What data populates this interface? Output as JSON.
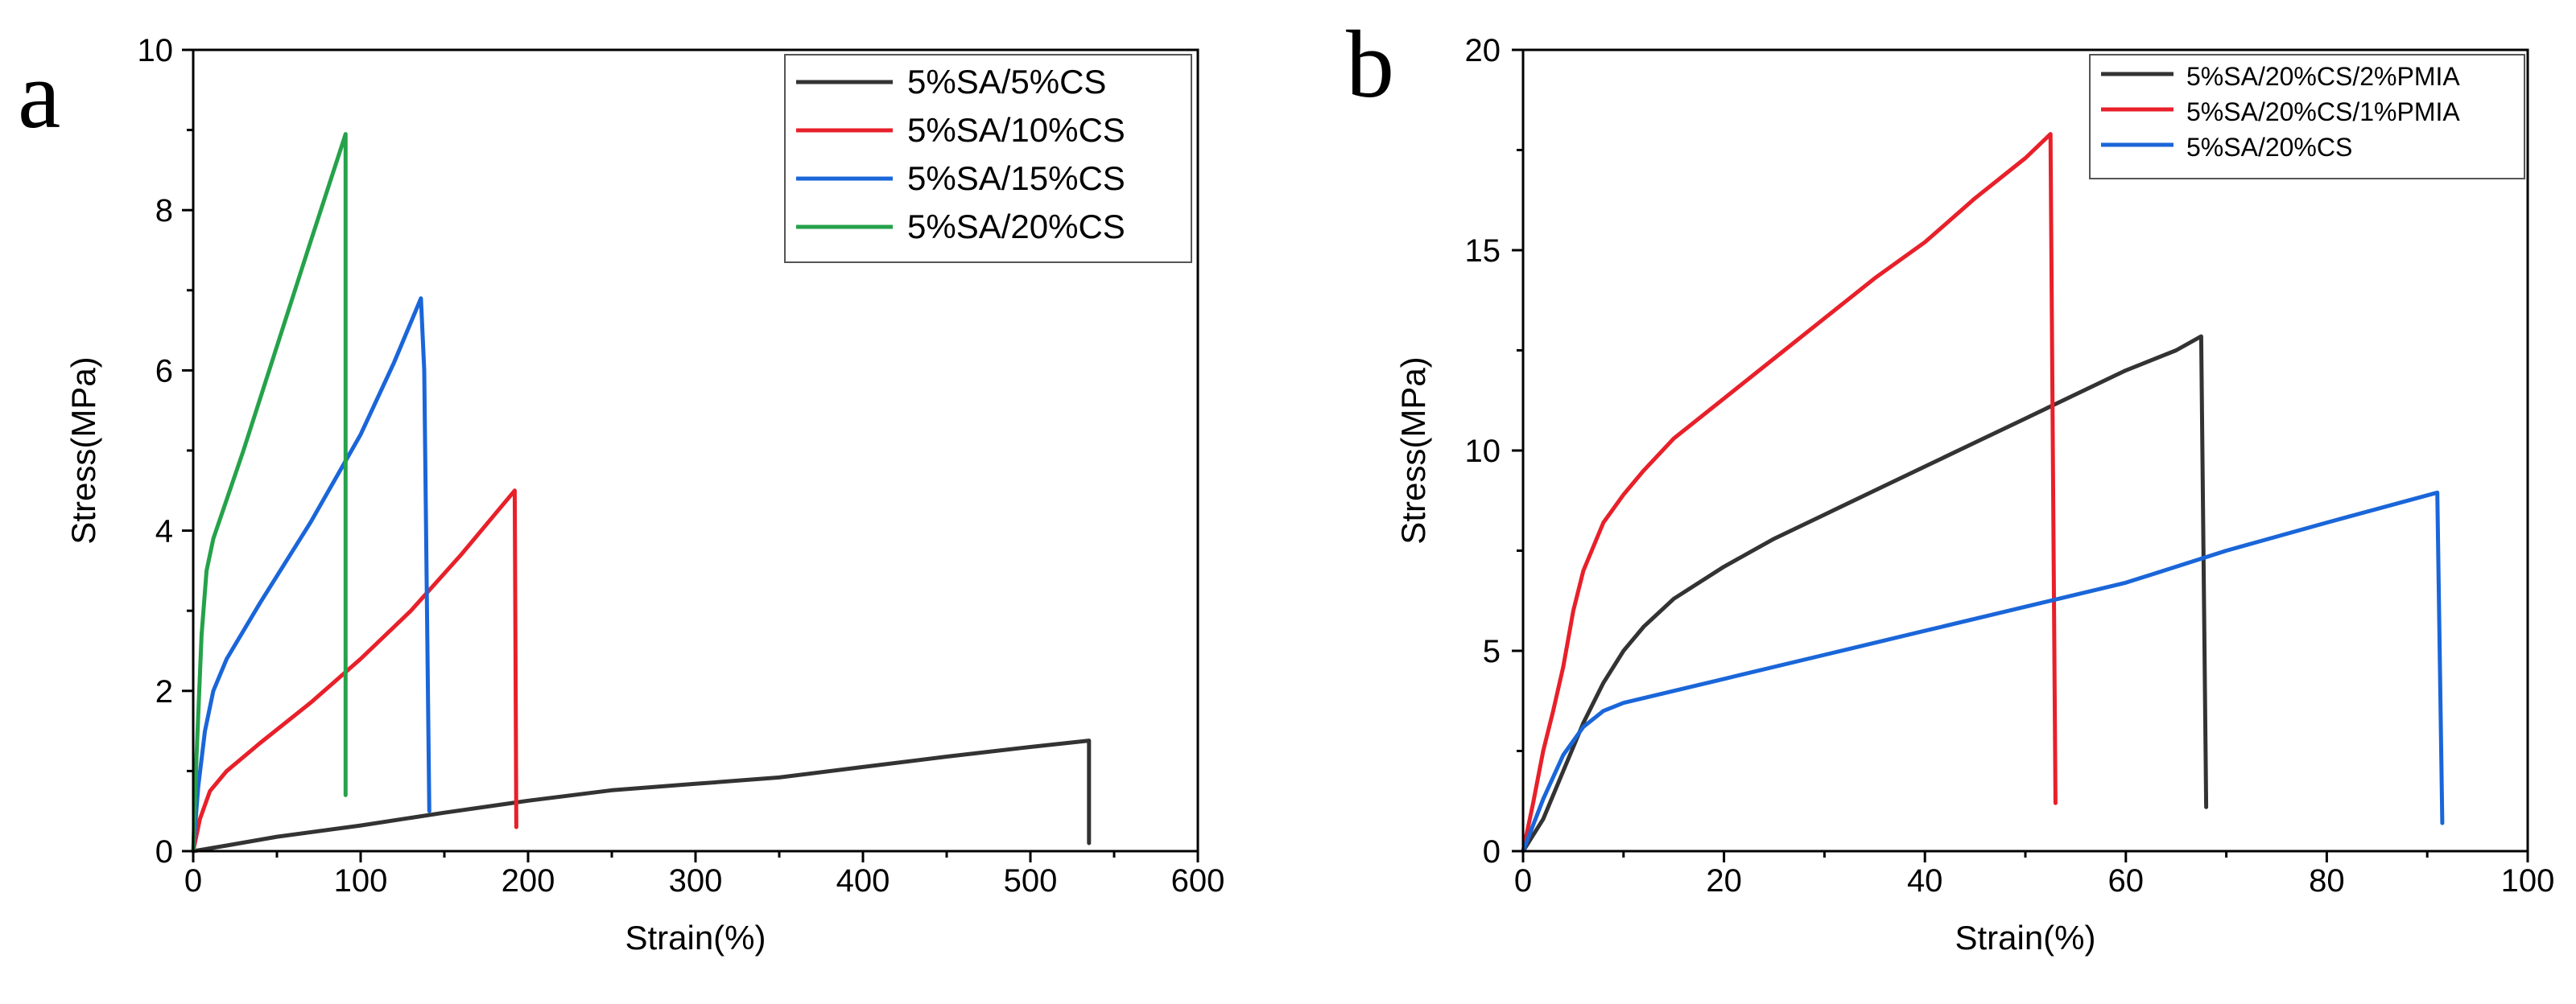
{
  "chart_data": [
    {
      "panel": "a",
      "type": "line",
      "title": "",
      "xlabel": "Strain(%)",
      "ylabel": "Stress(MPa)",
      "xlim": [
        0,
        600
      ],
      "ylim": [
        0,
        10
      ],
      "xticks": [
        0,
        100,
        200,
        300,
        400,
        500,
        600
      ],
      "yticks": [
        0,
        2,
        4,
        6,
        8,
        10
      ],
      "legend_position": "top-right",
      "series": [
        {
          "name": "5%SA/5%CS",
          "color": "#333333",
          "points": [
            [
              0,
              0
            ],
            [
              20,
              0.07
            ],
            [
              50,
              0.18
            ],
            [
              100,
              0.32
            ],
            [
              150,
              0.48
            ],
            [
              200,
              0.63
            ],
            [
              250,
              0.76
            ],
            [
              300,
              0.84
            ],
            [
              350,
              0.92
            ],
            [
              400,
              1.05
            ],
            [
              450,
              1.18
            ],
            [
              500,
              1.3
            ],
            [
              535,
              1.38
            ],
            [
              535,
              0.1
            ]
          ]
        },
        {
          "name": "5%SA/10%CS",
          "color": "#e8202a",
          "points": [
            [
              0,
              0
            ],
            [
              4,
              0.4
            ],
            [
              10,
              0.75
            ],
            [
              20,
              1.0
            ],
            [
              40,
              1.35
            ],
            [
              70,
              1.85
            ],
            [
              100,
              2.4
            ],
            [
              130,
              3.0
            ],
            [
              160,
              3.7
            ],
            [
              180,
              4.2
            ],
            [
              192,
              4.5
            ],
            [
              193,
              0.3
            ]
          ]
        },
        {
          "name": "5%SA/15%CS",
          "color": "#1a66d9",
          "points": [
            [
              0,
              0
            ],
            [
              3,
              0.8
            ],
            [
              7,
              1.5
            ],
            [
              12,
              2.0
            ],
            [
              20,
              2.4
            ],
            [
              40,
              3.1
            ],
            [
              70,
              4.1
            ],
            [
              100,
              5.2
            ],
            [
              120,
              6.1
            ],
            [
              136,
              6.9
            ],
            [
              138,
              6.0
            ],
            [
              141,
              0.5
            ]
          ]
        },
        {
          "name": "5%SA/20%CS",
          "color": "#25a24a",
          "points": [
            [
              0,
              0
            ],
            [
              2,
              1.2
            ],
            [
              5,
              2.7
            ],
            [
              8,
              3.5
            ],
            [
              12,
              3.9
            ],
            [
              30,
              5.0
            ],
            [
              50,
              6.3
            ],
            [
              70,
              7.6
            ],
            [
              91,
              8.95
            ],
            [
              91,
              0.7
            ]
          ]
        }
      ]
    },
    {
      "panel": "b",
      "type": "line",
      "title": "",
      "xlabel": "Strain(%)",
      "ylabel": "Stress(MPa)",
      "xlim": [
        0,
        100
      ],
      "ylim": [
        0,
        20
      ],
      "xticks": [
        0,
        20,
        40,
        60,
        80,
        100
      ],
      "yticks": [
        0,
        5,
        10,
        15,
        20
      ],
      "legend_position": "top-right",
      "series": [
        {
          "name": "5%SA/20%CS/2%PMIA",
          "color": "#333333",
          "points": [
            [
              0,
              0
            ],
            [
              2,
              0.8
            ],
            [
              4,
              2.0
            ],
            [
              6,
              3.2
            ],
            [
              8,
              4.2
            ],
            [
              10,
              5.0
            ],
            [
              12,
              5.6
            ],
            [
              15,
              6.3
            ],
            [
              20,
              7.1
            ],
            [
              25,
              7.8
            ],
            [
              30,
              8.4
            ],
            [
              35,
              9.0
            ],
            [
              40,
              9.6
            ],
            [
              45,
              10.2
            ],
            [
              50,
              10.8
            ],
            [
              55,
              11.4
            ],
            [
              60,
              12.0
            ],
            [
              65,
              12.5
            ],
            [
              67.5,
              12.85
            ],
            [
              68,
              1.1
            ]
          ]
        },
        {
          "name": "5%SA/20%CS/1%PMIA",
          "color": "#e8202a",
          "points": [
            [
              0,
              0
            ],
            [
              1,
              1.2
            ],
            [
              2,
              2.5
            ],
            [
              3,
              3.5
            ],
            [
              4,
              4.6
            ],
            [
              5,
              6.0
            ],
            [
              6,
              7.0
            ],
            [
              8,
              8.2
            ],
            [
              10,
              8.9
            ],
            [
              12,
              9.5
            ],
            [
              15,
              10.3
            ],
            [
              20,
              11.3
            ],
            [
              25,
              12.3
            ],
            [
              30,
              13.3
            ],
            [
              35,
              14.3
            ],
            [
              40,
              15.2
            ],
            [
              45,
              16.3
            ],
            [
              50,
              17.3
            ],
            [
              52.5,
              17.9
            ],
            [
              53,
              1.2
            ]
          ]
        },
        {
          "name": "5%SA/20%CS",
          "color": "#1a66d9",
          "points": [
            [
              0,
              0
            ],
            [
              2,
              1.3
            ],
            [
              4,
              2.4
            ],
            [
              6,
              3.1
            ],
            [
              8,
              3.5
            ],
            [
              10,
              3.7
            ],
            [
              15,
              4.0
            ],
            [
              20,
              4.3
            ],
            [
              30,
              4.9
            ],
            [
              40,
              5.5
            ],
            [
              50,
              6.1
            ],
            [
              60,
              6.7
            ],
            [
              70,
              7.5
            ],
            [
              80,
              8.2
            ],
            [
              91,
              8.95
            ],
            [
              91.5,
              0.7
            ]
          ]
        }
      ]
    }
  ]
}
